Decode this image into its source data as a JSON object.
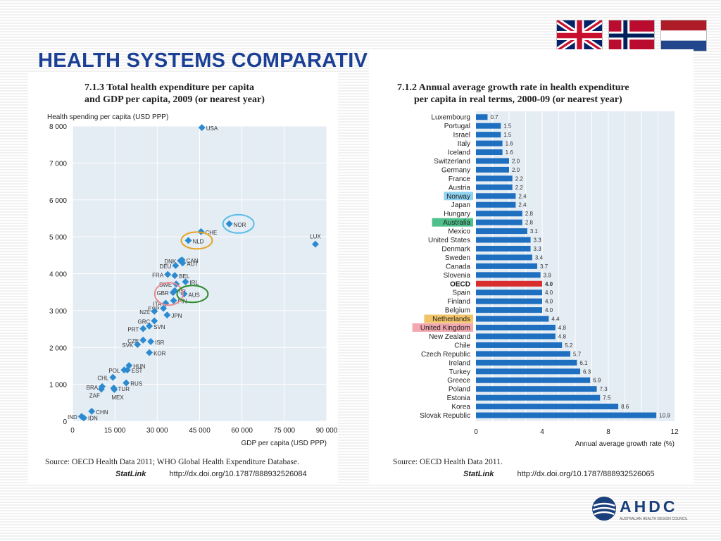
{
  "slide": {
    "title": "HEALTH SYSTEMS COMPARATIVE DATA",
    "logo_text": "AHDC",
    "logo_subtitle": "AUSTRALIAN HEALTH DESIGN COUNCIL",
    "flags": [
      "uk-flag-icon",
      "norway-flag-icon",
      "netherlands-flag-icon"
    ]
  },
  "left_panel": {
    "title_line1": "7.1.3  Total health expenditure per capita",
    "title_line2": "and GDP per capita, 2009 (or nearest year)",
    "source": "Source:  OECD Health Data 2011; WHO Global Health Expenditure Database.",
    "statlink_label": "StatLink",
    "statlink_url": "http://dx.doi.org/10.1787/888932526084"
  },
  "right_panel": {
    "title_line1": "7.1.2  Annual average growth rate in health expenditure",
    "title_line2": "per capita in real terms, 2000-09 (or nearest year)",
    "source": "Source:  OECD Health Data 2011.",
    "statlink_label": "StatLink",
    "statlink_url": "http://dx.doi.org/10.1787/888932526065"
  },
  "chart_data": [
    {
      "type": "scatter",
      "title": "7.1.3  Total health expenditure per capita and GDP per capita, 2009 (or nearest year)",
      "xlabel": "GDP per capita (USD PPP)",
      "ylabel": "Health spending per capita (USD PPP)",
      "xlim": [
        0,
        90000
      ],
      "ylim": [
        0,
        8000
      ],
      "xticks": [
        0,
        15000,
        30000,
        45000,
        60000,
        75000,
        90000
      ],
      "xtick_labels": [
        "0",
        "15 000",
        "30 000",
        "45 000",
        "60 000",
        "75 000",
        "90 000"
      ],
      "yticks": [
        0,
        1000,
        2000,
        3000,
        4000,
        5000,
        6000,
        7000,
        8000
      ],
      "ytick_labels": [
        "0",
        "1 000",
        "2 000",
        "3 000",
        "4 000",
        "5 000",
        "6 000",
        "7 000",
        "8 000"
      ],
      "grid": true,
      "marker_color": "#2b8ad0",
      "points": [
        {
          "label": "USA",
          "x": 45800,
          "y": 7960
        },
        {
          "label": "LUX",
          "x": 86000,
          "y": 4800
        },
        {
          "label": "NOR",
          "x": 55500,
          "y": 5350
        },
        {
          "label": "CHE",
          "x": 45500,
          "y": 5140
        },
        {
          "label": "NLD",
          "x": 41000,
          "y": 4900
        },
        {
          "label": "DNK",
          "x": 38200,
          "y": 4350
        },
        {
          "label": "CAN",
          "x": 38800,
          "y": 4370
        },
        {
          "label": "AUT",
          "x": 39000,
          "y": 4290
        },
        {
          "label": "DEU",
          "x": 36500,
          "y": 4220
        },
        {
          "label": "FRA",
          "x": 33700,
          "y": 3980
        },
        {
          "label": "BEL",
          "x": 36200,
          "y": 3950
        },
        {
          "label": "IRL",
          "x": 40000,
          "y": 3780
        },
        {
          "label": "SWE",
          "x": 36700,
          "y": 3720
        },
        {
          "label": "ISL",
          "x": 36200,
          "y": 3540
        },
        {
          "label": "GBR",
          "x": 35600,
          "y": 3490
        },
        {
          "label": "AUS",
          "x": 39500,
          "y": 3450
        },
        {
          "label": "FIN",
          "x": 35800,
          "y": 3270
        },
        {
          "label": "ITA",
          "x": 33000,
          "y": 3200
        },
        {
          "label": "ESP",
          "x": 32200,
          "y": 3060
        },
        {
          "label": "JPN",
          "x": 33500,
          "y": 2880
        },
        {
          "label": "NZL",
          "x": 29000,
          "y": 2980
        },
        {
          "label": "GRC",
          "x": 29000,
          "y": 2720
        },
        {
          "label": "SVN",
          "x": 27200,
          "y": 2580
        },
        {
          "label": "PRT",
          "x": 25000,
          "y": 2510
        },
        {
          "label": "CZE",
          "x": 25000,
          "y": 2200
        },
        {
          "label": "ISR",
          "x": 27700,
          "y": 2160
        },
        {
          "label": "SVK",
          "x": 23000,
          "y": 2080
        },
        {
          "label": "KOR",
          "x": 27200,
          "y": 1860
        },
        {
          "label": "HUN",
          "x": 20000,
          "y": 1510
        },
        {
          "label": "EST",
          "x": 19400,
          "y": 1390
        },
        {
          "label": "POL",
          "x": 18300,
          "y": 1390
        },
        {
          "label": "CHL",
          "x": 14300,
          "y": 1190
        },
        {
          "label": "RUS",
          "x": 19000,
          "y": 1040
        },
        {
          "label": "BRA",
          "x": 10500,
          "y": 940
        },
        {
          "label": "ZAF",
          "x": 10200,
          "y": 870
        },
        {
          "label": "TUR",
          "x": 14600,
          "y": 900
        },
        {
          "label": "MEX",
          "x": 14800,
          "y": 860
        },
        {
          "label": "IND",
          "x": 3200,
          "y": 130
        },
        {
          "label": "CHN",
          "x": 6800,
          "y": 270
        },
        {
          "label": "IDN",
          "x": 4000,
          "y": 90
        }
      ],
      "annotations": [
        {
          "shape": "circle",
          "around": "NOR",
          "color": "#5bbde8"
        },
        {
          "shape": "circle",
          "around": "NLD",
          "color": "#e6a321"
        },
        {
          "shape": "circle",
          "around": "GBR",
          "color": "#e98a8f"
        },
        {
          "shape": "circle",
          "around": "AUS",
          "color": "#2a8a2a"
        }
      ]
    },
    {
      "type": "bar",
      "orientation": "horizontal",
      "title": "7.1.2  Annual average growth rate in health expenditure per capita in real terms, 2000-09 (or nearest year)",
      "xlabel": "Annual average growth rate (%)",
      "xlim": [
        0,
        12
      ],
      "xticks": [
        0,
        4,
        8,
        12
      ],
      "grid": true,
      "bar_color": "#1e6fc0",
      "highlight_bar_color": "#d92e2e",
      "categories": [
        "Luxembourg",
        "Portugal",
        "Israel",
        "Italy",
        "Iceland",
        "Switzerland",
        "Germany",
        "France",
        "Austria",
        "Norway",
        "Japan",
        "Hungary",
        "Australia",
        "Mexico",
        "United States",
        "Denmark",
        "Sweden",
        "Canada",
        "Slovenia",
        "OECD",
        "Spain",
        "Finland",
        "Belgium",
        "Netherlands",
        "United Kingdom",
        "New Zealand",
        "Chile",
        "Czech Republic",
        "Ireland",
        "Turkey",
        "Greece",
        "Poland",
        "Estonia",
        "Korea",
        "Slovak Republic"
      ],
      "values": [
        0.7,
        1.5,
        1.5,
        1.6,
        1.6,
        2.0,
        2.0,
        2.2,
        2.2,
        2.4,
        2.4,
        2.8,
        2.8,
        3.1,
        3.3,
        3.3,
        3.4,
        3.7,
        3.9,
        4.0,
        4.0,
        4.0,
        4.0,
        4.4,
        4.8,
        4.8,
        5.2,
        5.7,
        6.1,
        6.3,
        6.9,
        7.3,
        7.5,
        8.6,
        10.9
      ],
      "value_labels": [
        "0.7",
        "1.5",
        "1.5",
        "1.6",
        "1.6",
        "2.0",
        "2.0",
        "2.2",
        "2.2",
        "2.4",
        "2.4",
        "2.8",
        "2.8",
        "3.1",
        "3.3",
        "3.3",
        "3.4",
        "3.7",
        "3.9",
        "4.0",
        "4.0",
        "4.0",
        "4.0",
        "4.4",
        "4.8",
        "4.8",
        "5.2",
        "5.7",
        "6.1",
        "6.3",
        "6.9",
        "7.3",
        "7.5",
        "8.6",
        "10.9"
      ],
      "highlighted_labels": [
        {
          "label": "Norway",
          "color": "#8fd3f2"
        },
        {
          "label": "Australia",
          "color": "#4ec08a"
        },
        {
          "label": "Netherlands",
          "color": "#f2c46a"
        },
        {
          "label": "United Kingdom",
          "color": "#f3a8b0"
        }
      ],
      "bold_label": "OECD"
    }
  ]
}
